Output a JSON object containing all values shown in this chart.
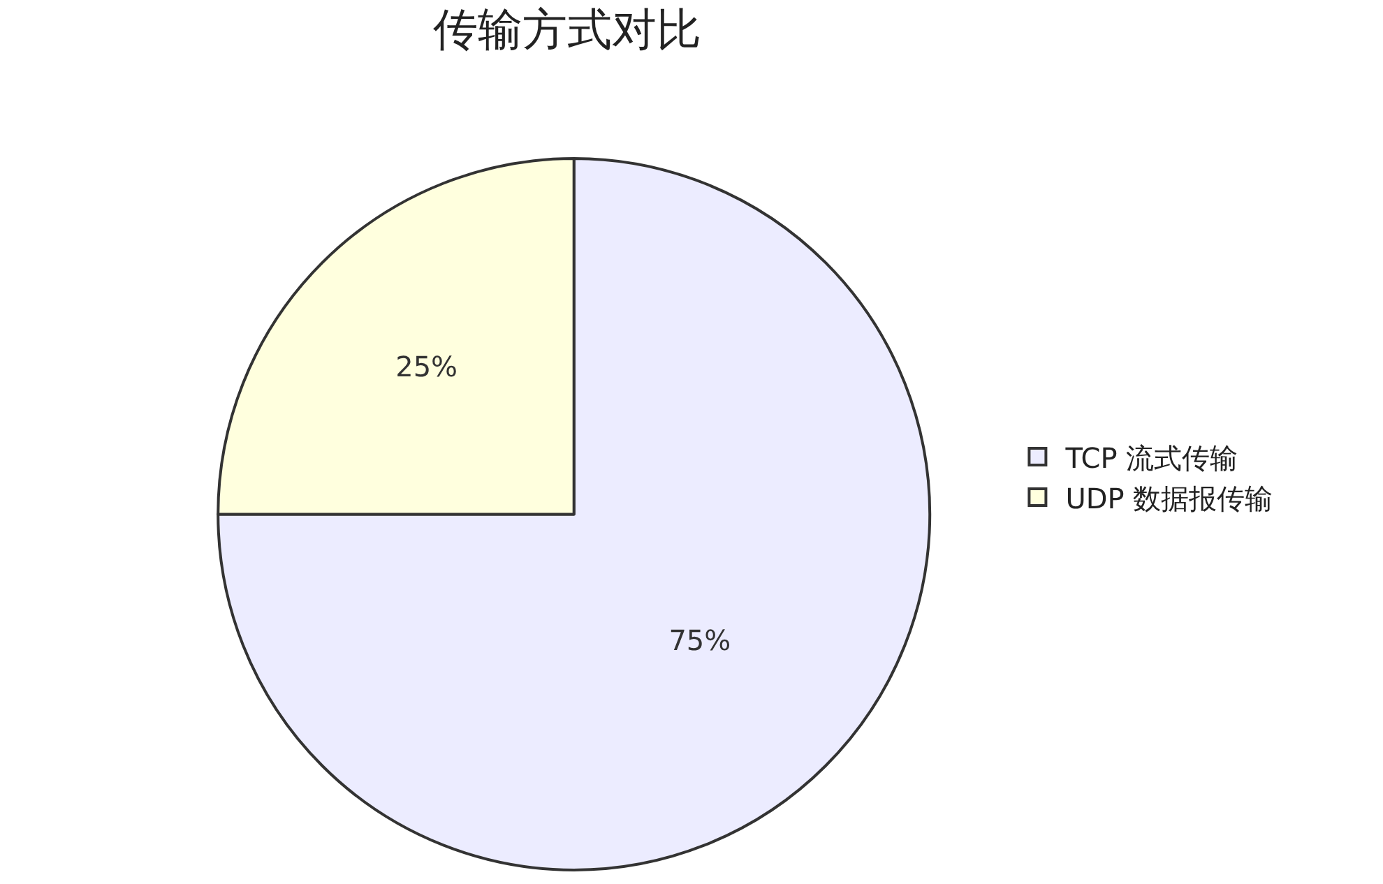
{
  "chart_data": {
    "type": "pie",
    "title": "传输方式对比",
    "categories": [
      "TCP 流式传输",
      "UDP 数据报传输"
    ],
    "values": [
      75,
      25
    ],
    "colors": [
      "#ececff",
      "#ffffde"
    ],
    "value_labels": [
      "75%",
      "25%"
    ],
    "legend": "right"
  }
}
